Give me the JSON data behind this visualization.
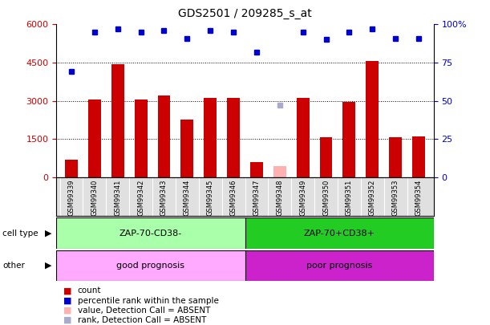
{
  "title": "GDS2501 / 209285_s_at",
  "samples": [
    "GSM99339",
    "GSM99340",
    "GSM99341",
    "GSM99342",
    "GSM99343",
    "GSM99344",
    "GSM99345",
    "GSM99346",
    "GSM99347",
    "GSM99348",
    "GSM99349",
    "GSM99350",
    "GSM99351",
    "GSM99352",
    "GSM99353",
    "GSM99354"
  ],
  "bar_values": [
    700,
    3050,
    4430,
    3060,
    3220,
    2250,
    3120,
    3100,
    600,
    null,
    3100,
    1580,
    2970,
    4560,
    1560,
    1590
  ],
  "bar_absent_values": [
    null,
    null,
    null,
    null,
    null,
    null,
    null,
    null,
    null,
    430,
    null,
    null,
    null,
    null,
    null,
    null
  ],
  "dot_values": [
    69,
    95,
    97,
    95,
    96,
    91,
    96,
    95,
    82,
    null,
    95,
    90,
    95,
    97,
    91,
    91
  ],
  "dot_absent_values": [
    null,
    null,
    null,
    null,
    null,
    null,
    null,
    null,
    null,
    47,
    null,
    null,
    null,
    null,
    null,
    null
  ],
  "bar_color": "#cc0000",
  "bar_absent_color": "#ffb0b0",
  "dot_color": "#0000cc",
  "dot_absent_color": "#aaaacc",
  "ylim_left": [
    0,
    6000
  ],
  "ylim_right": [
    0,
    100
  ],
  "yticks_left": [
    0,
    1500,
    3000,
    4500,
    6000
  ],
  "yticks_right": [
    0,
    25,
    50,
    75,
    100
  ],
  "ytick_labels_left": [
    "0",
    "1500",
    "3000",
    "4500",
    "6000"
  ],
  "ytick_labels_right": [
    "0",
    "25",
    "50",
    "75",
    "100%"
  ],
  "group1_count": 8,
  "group1_label": "ZAP-70-CD38-",
  "group1_bg": "#aaffaa",
  "group2_label": "ZAP-70+CD38+",
  "group2_bg": "#22cc22",
  "other1_label": "good prognosis",
  "other1_bg": "#ffaaff",
  "other2_label": "poor prognosis",
  "other2_bg": "#cc22cc",
  "cell_type_label": "cell type",
  "other_label": "other",
  "legend_items": [
    {
      "label": "count",
      "color": "#cc0000"
    },
    {
      "label": "percentile rank within the sample",
      "color": "#0000cc"
    },
    {
      "label": "value, Detection Call = ABSENT",
      "color": "#ffb0b0"
    },
    {
      "label": "rank, Detection Call = ABSENT",
      "color": "#aaaacc"
    }
  ],
  "n_samples": 16,
  "bar_width": 0.55,
  "dot_markersize": 5
}
